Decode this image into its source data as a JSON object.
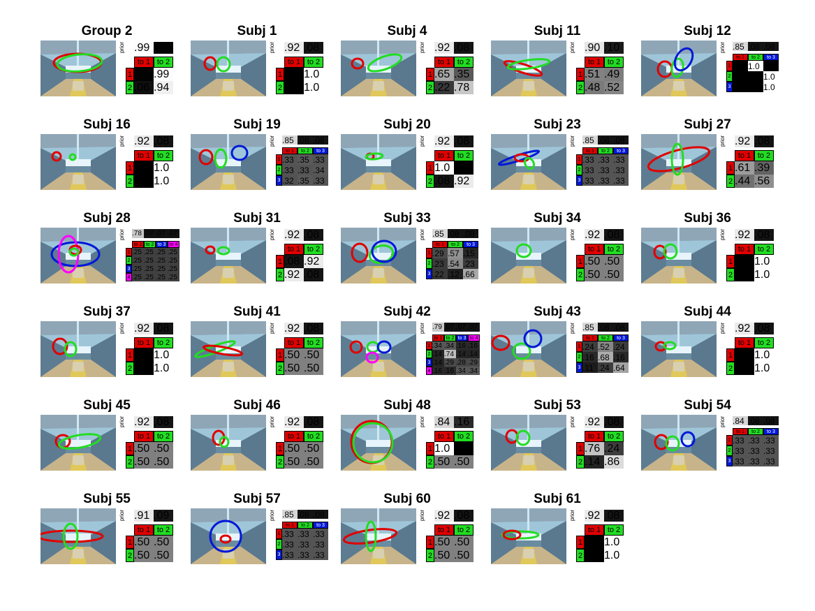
{
  "colors": {
    "c1": "#e00000",
    "c2": "#22dd22",
    "c3": "#0018d8",
    "c4": "#ff00ff"
  },
  "prior_label": "prior",
  "panels": [
    {
      "title": "Group 2",
      "prior": [
        ".99",
        ""
      ],
      "cols": [
        "to 1",
        "to 2"
      ],
      "rows": [
        [
          "",
          ".99"
        ],
        [
          ".06",
          ".94"
        ]
      ],
      "shades": [
        [
          0.01,
          0.99
        ],
        [
          0.06,
          0.94
        ]
      ],
      "pshade": [
        0.99,
        0.01
      ]
    },
    {
      "title": "Subj 1",
      "prior": [
        ".92",
        ".08"
      ],
      "cols": [
        "to 1",
        "to 2"
      ],
      "rows": [
        [
          "",
          "1.0"
        ],
        [
          "",
          "1.0"
        ]
      ],
      "shades": [
        [
          0,
          1
        ],
        [
          0,
          1
        ]
      ],
      "pshade": [
        0.92,
        0.08
      ]
    },
    {
      "title": "Subj 4",
      "prior": [
        ".92",
        ".08"
      ],
      "cols": [
        "to 1",
        "to 2"
      ],
      "rows": [
        [
          ".65",
          ".35"
        ],
        [
          ".22",
          ".78"
        ]
      ],
      "shades": [
        [
          0.65,
          0.35
        ],
        [
          0.22,
          0.78
        ]
      ],
      "pshade": [
        0.92,
        0.08
      ]
    },
    {
      "title": "Subj 11",
      "prior": [
        ".90",
        ".10"
      ],
      "cols": [
        "to 1",
        "to 2"
      ],
      "rows": [
        [
          ".51",
          ".49"
        ],
        [
          ".48",
          ".52"
        ]
      ],
      "shades": [
        [
          0.51,
          0.49
        ],
        [
          0.48,
          0.52
        ]
      ],
      "pshade": [
        0.9,
        0.1
      ]
    },
    {
      "title": "Subj 12",
      "prior": [
        ".85",
        ".08",
        ".08"
      ],
      "cols": [
        "to 1",
        "to 2",
        "to 3"
      ],
      "rows": [
        [
          "",
          "1.0",
          ""
        ],
        [
          "",
          "",
          "1.0"
        ],
        [
          "",
          "",
          "1.0"
        ]
      ],
      "shades": [
        [
          0,
          1,
          0
        ],
        [
          0,
          0,
          1
        ],
        [
          0,
          0,
          1
        ]
      ],
      "pshade": [
        0.85,
        0.08,
        0.08
      ]
    },
    {
      "title": "Subj 16",
      "prior": [
        ".92",
        ".08"
      ],
      "cols": [
        "to 1",
        "to 2"
      ],
      "rows": [
        [
          "",
          "1.0"
        ],
        [
          "",
          "1.0"
        ]
      ],
      "shades": [
        [
          0,
          1
        ],
        [
          0,
          1
        ]
      ],
      "pshade": [
        0.92,
        0.08
      ]
    },
    {
      "title": "Subj 19",
      "prior": [
        ".85",
        ".08",
        ".08"
      ],
      "cols": [
        "to 1",
        "to 2",
        "to 3"
      ],
      "rows": [
        [
          ".33",
          ".35",
          ".33"
        ],
        [
          ".33",
          ".33",
          ".34"
        ],
        [
          ".32",
          ".35",
          ".33"
        ]
      ],
      "shades": [
        [
          0.33,
          0.35,
          0.33
        ],
        [
          0.33,
          0.33,
          0.34
        ],
        [
          0.32,
          0.35,
          0.33
        ]
      ],
      "pshade": [
        0.85,
        0.08,
        0.08
      ]
    },
    {
      "title": "Subj 20",
      "prior": [
        ".92",
        ".08"
      ],
      "cols": [
        "to 1",
        "to 2"
      ],
      "rows": [
        [
          "1.0",
          ""
        ],
        [
          ".08",
          ".92"
        ]
      ],
      "shades": [
        [
          1,
          0
        ],
        [
          0.08,
          0.92
        ]
      ],
      "pshade": [
        0.92,
        0.08
      ]
    },
    {
      "title": "Subj 23",
      "prior": [
        ".85",
        ".08",
        ".08"
      ],
      "cols": [
        "to 1",
        "to 2",
        "to 3"
      ],
      "rows": [
        [
          ".33",
          ".33",
          ".33"
        ],
        [
          ".33",
          ".33",
          ".33"
        ],
        [
          ".33",
          ".33",
          ".33"
        ]
      ],
      "shades": [
        [
          0.33,
          0.33,
          0.33
        ],
        [
          0.33,
          0.33,
          0.33
        ],
        [
          0.33,
          0.33,
          0.33
        ]
      ],
      "pshade": [
        0.85,
        0.08,
        0.08
      ]
    },
    {
      "title": "Subj 27",
      "prior": [
        ".92",
        ".08"
      ],
      "cols": [
        "to 1",
        "to 2"
      ],
      "rows": [
        [
          ".61",
          ".39"
        ],
        [
          ".44",
          ".56"
        ]
      ],
      "shades": [
        [
          0.61,
          0.39
        ],
        [
          0.44,
          0.56
        ]
      ],
      "pshade": [
        0.92,
        0.08
      ]
    },
    {
      "title": "Subj 28",
      "prior": [
        ".78",
        ".07",
        ".07",
        ".07"
      ],
      "cols": [
        "to 1",
        "to 2",
        "to 3",
        "to 4"
      ],
      "rows": [
        [
          ".25",
          ".25",
          ".25",
          ".25"
        ],
        [
          ".25",
          ".25",
          ".25",
          ".25"
        ],
        [
          ".25",
          ".25",
          ".25",
          ".25"
        ],
        [
          ".25",
          ".25",
          ".25",
          ".25"
        ]
      ],
      "shades": [
        [
          0.25,
          0.25,
          0.25,
          0.25
        ],
        [
          0.25,
          0.25,
          0.25,
          0.25
        ],
        [
          0.25,
          0.25,
          0.25,
          0.25
        ],
        [
          0.25,
          0.25,
          0.25,
          0.25
        ]
      ],
      "pshade": [
        0.78,
        0.07,
        0.07,
        0.07
      ]
    },
    {
      "title": "Subj 31",
      "prior": [
        ".92",
        ".08"
      ],
      "cols": [
        "to 1",
        "to 2"
      ],
      "rows": [
        [
          ".08",
          ".92"
        ],
        [
          ".92",
          ".08"
        ]
      ],
      "shades": [
        [
          0.08,
          0.92
        ],
        [
          0.92,
          0.08
        ]
      ],
      "pshade": [
        0.92,
        0.08
      ]
    },
    {
      "title": "Subj 33",
      "prior": [
        ".85",
        ".08",
        ".08"
      ],
      "cols": [
        "to 1",
        "to 2",
        "to 3"
      ],
      "rows": [
        [
          ".29",
          ".57",
          ".15"
        ],
        [
          ".23",
          ".54",
          ".23"
        ],
        [
          ".22",
          ".12",
          ".66"
        ]
      ],
      "shades": [
        [
          0.29,
          0.57,
          0.15
        ],
        [
          0.23,
          0.54,
          0.23
        ],
        [
          0.22,
          0.12,
          0.66
        ]
      ],
      "pshade": [
        0.85,
        0.08,
        0.08
      ]
    },
    {
      "title": "Subj 34",
      "prior": [
        ".92",
        ".08"
      ],
      "cols": [
        "to 1",
        "to 2"
      ],
      "rows": [
        [
          ".50",
          ".50"
        ],
        [
          ".50",
          ".50"
        ]
      ],
      "shades": [
        [
          0.5,
          0.5
        ],
        [
          0.5,
          0.5
        ]
      ],
      "pshade": [
        0.92,
        0.08
      ]
    },
    {
      "title": "Subj 36",
      "prior": [
        ".92",
        ".08"
      ],
      "cols": [
        "to 1",
        "to 2"
      ],
      "rows": [
        [
          "",
          "1.0"
        ],
        [
          "",
          "1.0"
        ]
      ],
      "shades": [
        [
          0,
          1
        ],
        [
          0,
          1
        ]
      ],
      "pshade": [
        0.92,
        0.08
      ]
    },
    {
      "title": "Subj 37",
      "prior": [
        ".92",
        ".08"
      ],
      "cols": [
        "to 1",
        "to 2"
      ],
      "rows": [
        [
          "",
          "1.0"
        ],
        [
          "",
          "1.0"
        ]
      ],
      "shades": [
        [
          0,
          1
        ],
        [
          0,
          1
        ]
      ],
      "pshade": [
        0.92,
        0.08
      ]
    },
    {
      "title": "Subj 41",
      "prior": [
        ".92",
        ".08"
      ],
      "cols": [
        "to 1",
        "to 2"
      ],
      "rows": [
        [
          ".50",
          ".50"
        ],
        [
          ".50",
          ".50"
        ]
      ],
      "shades": [
        [
          0.5,
          0.5
        ],
        [
          0.5,
          0.5
        ]
      ],
      "pshade": [
        0.92,
        0.08
      ]
    },
    {
      "title": "Subj 42",
      "prior": [
        ".79",
        ".07",
        ".07",
        ".07"
      ],
      "cols": [
        "to 1",
        "to 2",
        "to 3",
        "to 4"
      ],
      "rows": [
        [
          ".34",
          ".34",
          ".16",
          ".16"
        ],
        [
          ".14",
          ".74",
          ".14",
          ".14"
        ],
        [
          ".14",
          ".29",
          ".28",
          ".29"
        ],
        [
          ".16",
          ".16",
          ".34",
          ".34"
        ]
      ],
      "shades": [
        [
          0.34,
          0.34,
          0.16,
          0.16
        ],
        [
          0.14,
          0.74,
          0.14,
          0.14
        ],
        [
          0.14,
          0.29,
          0.28,
          0.29
        ],
        [
          0.16,
          0.16,
          0.34,
          0.34
        ]
      ],
      "pshade": [
        0.79,
        0.07,
        0.07,
        0.07
      ]
    },
    {
      "title": "Subj 43",
      "prior": [
        ".85",
        ".08",
        ".08"
      ],
      "cols": [
        "to 1",
        "to 2",
        "to 3"
      ],
      "rows": [
        [
          ".24",
          ".52",
          ".24"
        ],
        [
          ".16",
          ".68",
          ".16"
        ],
        [
          ".11",
          ".24",
          ".64"
        ]
      ],
      "shades": [
        [
          0.24,
          0.52,
          0.24
        ],
        [
          0.16,
          0.68,
          0.16
        ],
        [
          0.11,
          0.24,
          0.64
        ]
      ],
      "pshade": [
        0.85,
        0.08,
        0.08
      ]
    },
    {
      "title": "Subj 44",
      "prior": [
        ".92",
        ".08"
      ],
      "cols": [
        "to 1",
        "to 2"
      ],
      "rows": [
        [
          "",
          "1.0"
        ],
        [
          "",
          "1.0"
        ]
      ],
      "shades": [
        [
          0,
          1
        ],
        [
          0,
          1
        ]
      ],
      "pshade": [
        0.92,
        0.08
      ]
    },
    {
      "title": "Subj 45",
      "prior": [
        ".92",
        ".08"
      ],
      "cols": [
        "to 1",
        "to 2"
      ],
      "rows": [
        [
          ".50",
          ".50"
        ],
        [
          ".50",
          ".50"
        ]
      ],
      "shades": [
        [
          0.5,
          0.5
        ],
        [
          0.5,
          0.5
        ]
      ],
      "pshade": [
        0.92,
        0.08
      ]
    },
    {
      "title": "Subj 46",
      "prior": [
        ".92",
        ".08"
      ],
      "cols": [
        "to 1",
        "to 2"
      ],
      "rows": [
        [
          ".50",
          ".50"
        ],
        [
          ".50",
          ".50"
        ]
      ],
      "shades": [
        [
          0.5,
          0.5
        ],
        [
          0.5,
          0.5
        ]
      ],
      "pshade": [
        0.92,
        0.08
      ]
    },
    {
      "title": "Subj 48",
      "prior": [
        ".84",
        ".16"
      ],
      "cols": [
        "to 1",
        "to 2"
      ],
      "rows": [
        [
          "1.0",
          ""
        ],
        [
          ".50",
          ".50"
        ]
      ],
      "shades": [
        [
          1,
          0
        ],
        [
          0.5,
          0.5
        ]
      ],
      "pshade": [
        0.84,
        0.16
      ]
    },
    {
      "title": "Subj 53",
      "prior": [
        ".92",
        ".08"
      ],
      "cols": [
        "to 1",
        "to 2"
      ],
      "rows": [
        [
          ".76",
          ".24"
        ],
        [
          ".14",
          ".86"
        ]
      ],
      "shades": [
        [
          0.76,
          0.24
        ],
        [
          0.14,
          0.86
        ]
      ],
      "pshade": [
        0.92,
        0.08
      ]
    },
    {
      "title": "Subj 54",
      "prior": [
        ".84",
        ".08",
        ".08"
      ],
      "cols": [
        "to 1",
        "to 2",
        "to 3"
      ],
      "rows": [
        [
          ".33",
          ".33",
          ".33"
        ],
        [
          ".33",
          ".33",
          ".33"
        ],
        [
          ".33",
          ".33",
          ".33"
        ]
      ],
      "shades": [
        [
          0.33,
          0.33,
          0.33
        ],
        [
          0.33,
          0.33,
          0.33
        ],
        [
          0.33,
          0.33,
          0.33
        ]
      ],
      "pshade": [
        0.84,
        0.08,
        0.08
      ]
    },
    {
      "title": "Subj 55",
      "prior": [
        ".91",
        ".09"
      ],
      "cols": [
        "to 1",
        "to 2"
      ],
      "rows": [
        [
          ".50",
          ".50"
        ],
        [
          ".50",
          ".50"
        ]
      ],
      "shades": [
        [
          0.5,
          0.5
        ],
        [
          0.5,
          0.5
        ]
      ],
      "pshade": [
        0.91,
        0.09
      ]
    },
    {
      "title": "Subj 57",
      "prior": [
        ".85",
        ".08",
        ".08"
      ],
      "cols": [
        "to 1",
        "to 2",
        "to 3"
      ],
      "rows": [
        [
          ".33",
          ".33",
          ".33"
        ],
        [
          ".33",
          ".33",
          ".33"
        ],
        [
          ".33",
          ".33",
          ".33"
        ]
      ],
      "shades": [
        [
          0.33,
          0.33,
          0.33
        ],
        [
          0.33,
          0.33,
          0.33
        ],
        [
          0.33,
          0.33,
          0.33
        ]
      ],
      "pshade": [
        0.85,
        0.08,
        0.08
      ]
    },
    {
      "title": "Subj 60",
      "prior": [
        ".92",
        ".08"
      ],
      "cols": [
        "to 1",
        "to 2"
      ],
      "rows": [
        [
          ".50",
          ".50"
        ],
        [
          ".50",
          ".50"
        ]
      ],
      "shades": [
        [
          0.5,
          0.5
        ],
        [
          0.5,
          0.5
        ]
      ],
      "pshade": [
        0.92,
        0.08
      ]
    },
    {
      "title": "Subj 61",
      "prior": [
        ".92",
        ".08"
      ],
      "cols": [
        "to 1",
        "to 2"
      ],
      "rows": [
        [
          "",
          "1.0"
        ],
        [
          "",
          "1.0"
        ]
      ],
      "shades": [
        [
          0,
          1
        ],
        [
          0,
          1
        ]
      ],
      "pshade": [
        0.92,
        0.08
      ]
    }
  ]
}
